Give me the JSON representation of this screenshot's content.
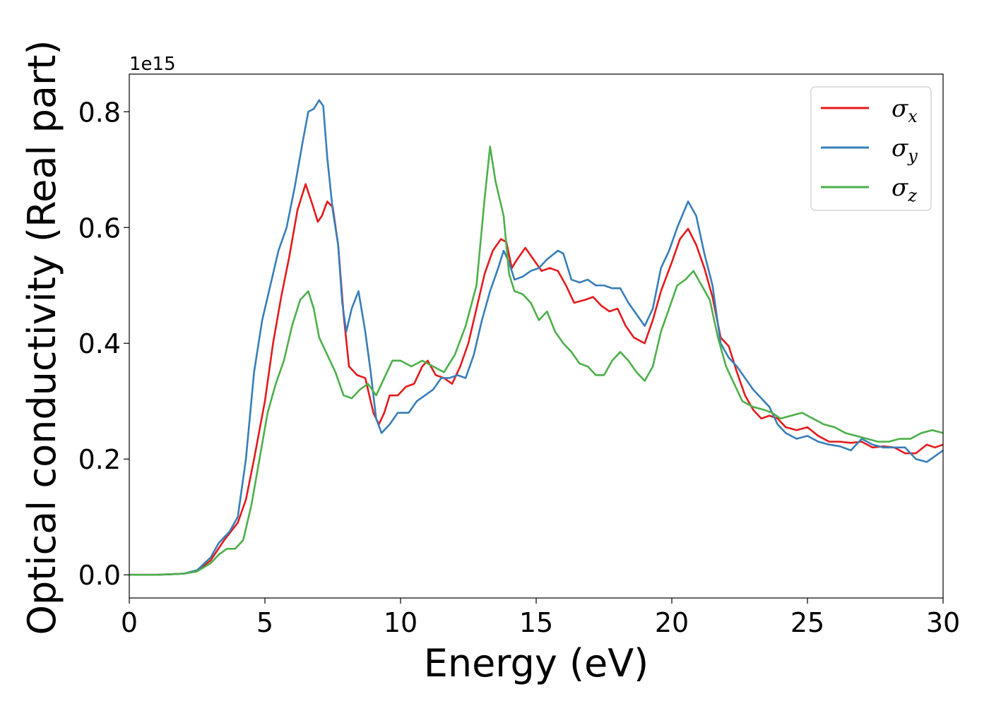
{
  "chart_data": {
    "type": "line",
    "xlabel": "Energy (eV)",
    "ylabel": "Optical conductivity (Real part)",
    "y_offset_label": "1e15",
    "xlim": [
      0,
      30
    ],
    "ylim": [
      -0.04,
      0.865
    ],
    "xticks": [
      0,
      5,
      10,
      15,
      20,
      25,
      30
    ],
    "xtick_labels": [
      "0",
      "5",
      "10",
      "15",
      "20",
      "25",
      "30"
    ],
    "yticks": [
      0.0,
      0.2,
      0.4,
      0.6,
      0.8
    ],
    "ytick_labels": [
      "0.0",
      "0.2",
      "0.4",
      "0.6",
      "0.8"
    ],
    "grid": false,
    "legend_position": "top-right",
    "series": [
      {
        "name": "σx",
        "legend_symbol": "σ",
        "legend_subscript": "x",
        "color": "#e41a1c",
        "points": [
          [
            0,
            0.0
          ],
          [
            1,
            0.0
          ],
          [
            2,
            0.002
          ],
          [
            2.5,
            0.006
          ],
          [
            3,
            0.025
          ],
          [
            3.5,
            0.06
          ],
          [
            4,
            0.09
          ],
          [
            4.3,
            0.13
          ],
          [
            4.6,
            0.2
          ],
          [
            5,
            0.3
          ],
          [
            5.3,
            0.4
          ],
          [
            5.6,
            0.48
          ],
          [
            5.9,
            0.55
          ],
          [
            6.2,
            0.63
          ],
          [
            6.5,
            0.675
          ],
          [
            6.75,
            0.64
          ],
          [
            6.95,
            0.61
          ],
          [
            7.1,
            0.62
          ],
          [
            7.3,
            0.645
          ],
          [
            7.5,
            0.635
          ],
          [
            7.7,
            0.57
          ],
          [
            7.9,
            0.45
          ],
          [
            8.1,
            0.36
          ],
          [
            8.4,
            0.345
          ],
          [
            8.7,
            0.34
          ],
          [
            9.0,
            0.28
          ],
          [
            9.2,
            0.26
          ],
          [
            9.4,
            0.28
          ],
          [
            9.6,
            0.31
          ],
          [
            9.9,
            0.31
          ],
          [
            10.2,
            0.325
          ],
          [
            10.5,
            0.33
          ],
          [
            10.8,
            0.36
          ],
          [
            11.0,
            0.37
          ],
          [
            11.3,
            0.345
          ],
          [
            11.6,
            0.34
          ],
          [
            11.9,
            0.33
          ],
          [
            12.2,
            0.36
          ],
          [
            12.5,
            0.4
          ],
          [
            12.8,
            0.46
          ],
          [
            13.1,
            0.52
          ],
          [
            13.4,
            0.56
          ],
          [
            13.7,
            0.58
          ],
          [
            13.9,
            0.575
          ],
          [
            14.1,
            0.53
          ],
          [
            14.3,
            0.545
          ],
          [
            14.6,
            0.565
          ],
          [
            14.9,
            0.545
          ],
          [
            15.2,
            0.525
          ],
          [
            15.5,
            0.53
          ],
          [
            15.8,
            0.525
          ],
          [
            16.1,
            0.5
          ],
          [
            16.4,
            0.47
          ],
          [
            16.8,
            0.475
          ],
          [
            17.1,
            0.48
          ],
          [
            17.4,
            0.465
          ],
          [
            17.7,
            0.455
          ],
          [
            18.0,
            0.46
          ],
          [
            18.3,
            0.43
          ],
          [
            18.6,
            0.41
          ],
          [
            19.0,
            0.4
          ],
          [
            19.3,
            0.44
          ],
          [
            19.6,
            0.49
          ],
          [
            20.0,
            0.54
          ],
          [
            20.3,
            0.58
          ],
          [
            20.6,
            0.598
          ],
          [
            20.9,
            0.57
          ],
          [
            21.2,
            0.53
          ],
          [
            21.5,
            0.48
          ],
          [
            21.8,
            0.41
          ],
          [
            22.1,
            0.395
          ],
          [
            22.4,
            0.35
          ],
          [
            22.7,
            0.31
          ],
          [
            23.0,
            0.285
          ],
          [
            23.3,
            0.27
          ],
          [
            23.6,
            0.275
          ],
          [
            23.9,
            0.27
          ],
          [
            24.2,
            0.255
          ],
          [
            24.6,
            0.25
          ],
          [
            25.0,
            0.255
          ],
          [
            25.4,
            0.24
          ],
          [
            25.8,
            0.23
          ],
          [
            26.2,
            0.23
          ],
          [
            26.6,
            0.228
          ],
          [
            27.0,
            0.23
          ],
          [
            27.4,
            0.22
          ],
          [
            27.8,
            0.222
          ],
          [
            28.2,
            0.22
          ],
          [
            28.6,
            0.21
          ],
          [
            29.0,
            0.21
          ],
          [
            29.4,
            0.225
          ],
          [
            29.7,
            0.22
          ],
          [
            30,
            0.225
          ]
        ]
      },
      {
        "name": "σy",
        "legend_symbol": "σ",
        "legend_subscript": "y",
        "color": "#377eb8",
        "points": [
          [
            0,
            0.0
          ],
          [
            1,
            0.0
          ],
          [
            2,
            0.002
          ],
          [
            2.5,
            0.008
          ],
          [
            3,
            0.03
          ],
          [
            3.3,
            0.055
          ],
          [
            3.7,
            0.075
          ],
          [
            4.0,
            0.1
          ],
          [
            4.3,
            0.2
          ],
          [
            4.6,
            0.35
          ],
          [
            4.9,
            0.44
          ],
          [
            5.2,
            0.5
          ],
          [
            5.5,
            0.56
          ],
          [
            5.8,
            0.6
          ],
          [
            6.1,
            0.67
          ],
          [
            6.4,
            0.75
          ],
          [
            6.6,
            0.8
          ],
          [
            6.8,
            0.805
          ],
          [
            7.0,
            0.82
          ],
          [
            7.15,
            0.81
          ],
          [
            7.3,
            0.72
          ],
          [
            7.5,
            0.63
          ],
          [
            7.7,
            0.57
          ],
          [
            7.85,
            0.47
          ],
          [
            8.0,
            0.42
          ],
          [
            8.2,
            0.46
          ],
          [
            8.45,
            0.49
          ],
          [
            8.7,
            0.42
          ],
          [
            8.9,
            0.35
          ],
          [
            9.1,
            0.27
          ],
          [
            9.3,
            0.245
          ],
          [
            9.6,
            0.26
          ],
          [
            9.9,
            0.28
          ],
          [
            10.3,
            0.28
          ],
          [
            10.6,
            0.3
          ],
          [
            10.9,
            0.31
          ],
          [
            11.2,
            0.32
          ],
          [
            11.5,
            0.34
          ],
          [
            11.8,
            0.34
          ],
          [
            12.1,
            0.345
          ],
          [
            12.4,
            0.34
          ],
          [
            12.7,
            0.38
          ],
          [
            13.0,
            0.44
          ],
          [
            13.3,
            0.49
          ],
          [
            13.6,
            0.53
          ],
          [
            13.8,
            0.56
          ],
          [
            14.0,
            0.54
          ],
          [
            14.2,
            0.51
          ],
          [
            14.5,
            0.515
          ],
          [
            14.8,
            0.525
          ],
          [
            15.1,
            0.53
          ],
          [
            15.4,
            0.545
          ],
          [
            15.8,
            0.56
          ],
          [
            16.0,
            0.555
          ],
          [
            16.3,
            0.51
          ],
          [
            16.6,
            0.505
          ],
          [
            16.9,
            0.51
          ],
          [
            17.2,
            0.5
          ],
          [
            17.5,
            0.5
          ],
          [
            17.8,
            0.495
          ],
          [
            18.1,
            0.495
          ],
          [
            18.4,
            0.47
          ],
          [
            18.7,
            0.45
          ],
          [
            19.0,
            0.43
          ],
          [
            19.3,
            0.46
          ],
          [
            19.6,
            0.53
          ],
          [
            19.9,
            0.56
          ],
          [
            20.2,
            0.6
          ],
          [
            20.6,
            0.645
          ],
          [
            20.9,
            0.62
          ],
          [
            21.2,
            0.555
          ],
          [
            21.5,
            0.5
          ],
          [
            21.8,
            0.4
          ],
          [
            22.1,
            0.375
          ],
          [
            22.4,
            0.36
          ],
          [
            22.7,
            0.34
          ],
          [
            23.0,
            0.32
          ],
          [
            23.3,
            0.305
          ],
          [
            23.6,
            0.29
          ],
          [
            23.9,
            0.26
          ],
          [
            24.2,
            0.245
          ],
          [
            24.6,
            0.235
          ],
          [
            25.0,
            0.24
          ],
          [
            25.4,
            0.23
          ],
          [
            25.8,
            0.225
          ],
          [
            26.2,
            0.222
          ],
          [
            26.6,
            0.215
          ],
          [
            27.0,
            0.235
          ],
          [
            27.4,
            0.225
          ],
          [
            27.8,
            0.22
          ],
          [
            28.2,
            0.22
          ],
          [
            28.6,
            0.22
          ],
          [
            29.0,
            0.2
          ],
          [
            29.4,
            0.195
          ],
          [
            29.7,
            0.205
          ],
          [
            30,
            0.215
          ]
        ]
      },
      {
        "name": "σz",
        "legend_symbol": "σ",
        "legend_subscript": "z",
        "color": "#4daf4a",
        "points": [
          [
            0,
            0.0
          ],
          [
            1,
            0.0
          ],
          [
            2,
            0.002
          ],
          [
            2.5,
            0.006
          ],
          [
            3,
            0.02
          ],
          [
            3.3,
            0.035
          ],
          [
            3.6,
            0.045
          ],
          [
            3.9,
            0.045
          ],
          [
            4.2,
            0.06
          ],
          [
            4.5,
            0.12
          ],
          [
            4.8,
            0.2
          ],
          [
            5.1,
            0.28
          ],
          [
            5.4,
            0.33
          ],
          [
            5.7,
            0.37
          ],
          [
            6.0,
            0.43
          ],
          [
            6.3,
            0.475
          ],
          [
            6.6,
            0.49
          ],
          [
            6.8,
            0.46
          ],
          [
            7.0,
            0.41
          ],
          [
            7.3,
            0.38
          ],
          [
            7.6,
            0.35
          ],
          [
            7.9,
            0.31
          ],
          [
            8.2,
            0.305
          ],
          [
            8.5,
            0.32
          ],
          [
            8.8,
            0.33
          ],
          [
            9.1,
            0.31
          ],
          [
            9.4,
            0.34
          ],
          [
            9.7,
            0.37
          ],
          [
            10.0,
            0.37
          ],
          [
            10.4,
            0.36
          ],
          [
            10.8,
            0.37
          ],
          [
            11.2,
            0.36
          ],
          [
            11.6,
            0.35
          ],
          [
            12.0,
            0.38
          ],
          [
            12.4,
            0.43
          ],
          [
            12.8,
            0.5
          ],
          [
            13.1,
            0.65
          ],
          [
            13.3,
            0.74
          ],
          [
            13.5,
            0.68
          ],
          [
            13.8,
            0.62
          ],
          [
            14.0,
            0.52
          ],
          [
            14.2,
            0.49
          ],
          [
            14.5,
            0.485
          ],
          [
            14.8,
            0.47
          ],
          [
            15.1,
            0.44
          ],
          [
            15.4,
            0.455
          ],
          [
            15.7,
            0.42
          ],
          [
            16.0,
            0.4
          ],
          [
            16.3,
            0.385
          ],
          [
            16.6,
            0.365
          ],
          [
            16.9,
            0.36
          ],
          [
            17.2,
            0.345
          ],
          [
            17.5,
            0.345
          ],
          [
            17.8,
            0.37
          ],
          [
            18.1,
            0.385
          ],
          [
            18.4,
            0.37
          ],
          [
            18.7,
            0.35
          ],
          [
            19.0,
            0.335
          ],
          [
            19.3,
            0.36
          ],
          [
            19.6,
            0.42
          ],
          [
            19.9,
            0.46
          ],
          [
            20.2,
            0.5
          ],
          [
            20.5,
            0.51
          ],
          [
            20.8,
            0.525
          ],
          [
            21.1,
            0.5
          ],
          [
            21.4,
            0.475
          ],
          [
            21.7,
            0.41
          ],
          [
            22.0,
            0.36
          ],
          [
            22.3,
            0.33
          ],
          [
            22.6,
            0.3
          ],
          [
            23.0,
            0.29
          ],
          [
            23.4,
            0.285
          ],
          [
            23.7,
            0.28
          ],
          [
            24.0,
            0.27
          ],
          [
            24.4,
            0.275
          ],
          [
            24.8,
            0.28
          ],
          [
            25.2,
            0.27
          ],
          [
            25.6,
            0.26
          ],
          [
            26.0,
            0.255
          ],
          [
            26.4,
            0.245
          ],
          [
            26.8,
            0.24
          ],
          [
            27.2,
            0.235
          ],
          [
            27.6,
            0.23
          ],
          [
            28.0,
            0.23
          ],
          [
            28.4,
            0.235
          ],
          [
            28.8,
            0.235
          ],
          [
            29.2,
            0.245
          ],
          [
            29.6,
            0.25
          ],
          [
            30,
            0.245
          ]
        ]
      }
    ]
  }
}
